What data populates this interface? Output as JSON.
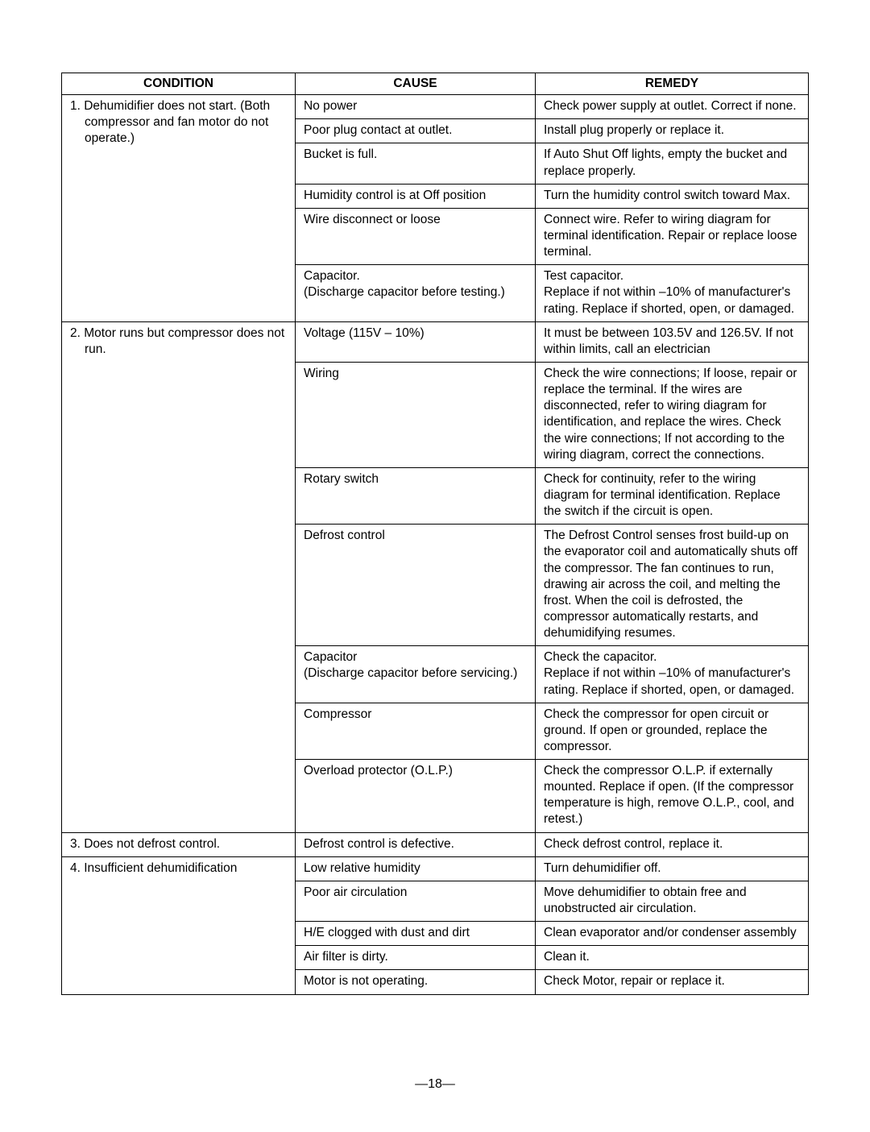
{
  "headers": {
    "condition": "CONDITION",
    "cause": "CAUSE",
    "remedy": "REMEDY"
  },
  "rows": [
    {
      "condition": "1. Dehumidifier does not start. (Both compressor and fan motor do not operate.)",
      "cells": [
        {
          "cause": "No power",
          "remedy": "Check power supply at outlet. Correct if none."
        },
        {
          "cause": "Poor plug contact at outlet.",
          "remedy": "Install plug properly or replace it."
        },
        {
          "cause": "Bucket is full.",
          "remedy": "If Auto Shut Off lights, empty the bucket and replace properly."
        },
        {
          "cause": "Humidity control is at Off position",
          "remedy": "Turn the humidity control switch toward Max."
        },
        {
          "cause": "Wire disconnect or loose",
          "remedy": "Connect wire. Refer to wiring diagram for terminal identification. Repair or replace loose terminal."
        },
        {
          "cause": "Capacitor.\n(Discharge capacitor before testing.)",
          "remedy": "Test capacitor.\nReplace if not within –10% of manufacturer's rating. Replace if shorted, open, or damaged."
        }
      ]
    },
    {
      "condition": "2. Motor runs but compressor does not run.",
      "cells": [
        {
          "cause": "Voltage (115V – 10%)",
          "remedy": "It must be between 103.5V and 126.5V. If not within limits, call an electrician"
        },
        {
          "cause": "Wiring",
          "remedy": "Check the wire connections; If loose, repair or replace the terminal. If the wires are disconnected, refer to wiring diagram for identification, and replace the wires. Check the wire connections; If not according to the wiring diagram, correct the connections."
        },
        {
          "cause": "Rotary switch",
          "remedy": "Check for continuity, refer to the wiring diagram for terminal identification. Replace the switch if the circuit is open."
        },
        {
          "cause": "Defrost control",
          "remedy": "The Defrost Control senses frost build-up on the evaporator coil and automatically shuts off the compressor. The fan continues to run, drawing air across the coil, and melting the frost. When the coil is defrosted, the compressor automatically restarts, and dehumidifying resumes."
        },
        {
          "cause": "Capacitor\n(Discharge capacitor before servicing.)",
          "remedy": "Check the capacitor.\nReplace if not within –10% of manufacturer's rating. Replace if shorted, open, or damaged."
        },
        {
          "cause": "Compressor",
          "remedy": "Check the compressor for open circuit or ground. If open or grounded, replace the compressor."
        },
        {
          "cause": "Overload protector (O.L.P.)",
          "remedy": "Check the compressor O.L.P. if externally mounted. Replace if open. (If the compressor temperature is high, remove O.L.P., cool, and retest.)"
        }
      ]
    },
    {
      "condition": "3. Does not defrost control.",
      "cells": [
        {
          "cause": "Defrost control is defective.",
          "remedy": "Check defrost control, replace it."
        }
      ]
    },
    {
      "condition": "4. Insufficient dehumidification",
      "cells": [
        {
          "cause": "Low relative humidity",
          "remedy": "Turn dehumidifier off."
        },
        {
          "cause": "Poor air circulation",
          "remedy": "Move dehumidifier to obtain free and unobstructed air circulation."
        },
        {
          "cause": "H/E clogged with dust and dirt",
          "remedy": "Clean evaporator and/or condenser assembly"
        },
        {
          "cause": "Air filter is dirty.",
          "remedy": "Clean it."
        },
        {
          "cause": "Motor is not operating.",
          "remedy": "Check Motor, repair or replace it."
        }
      ]
    }
  ],
  "page_number": "—18—"
}
